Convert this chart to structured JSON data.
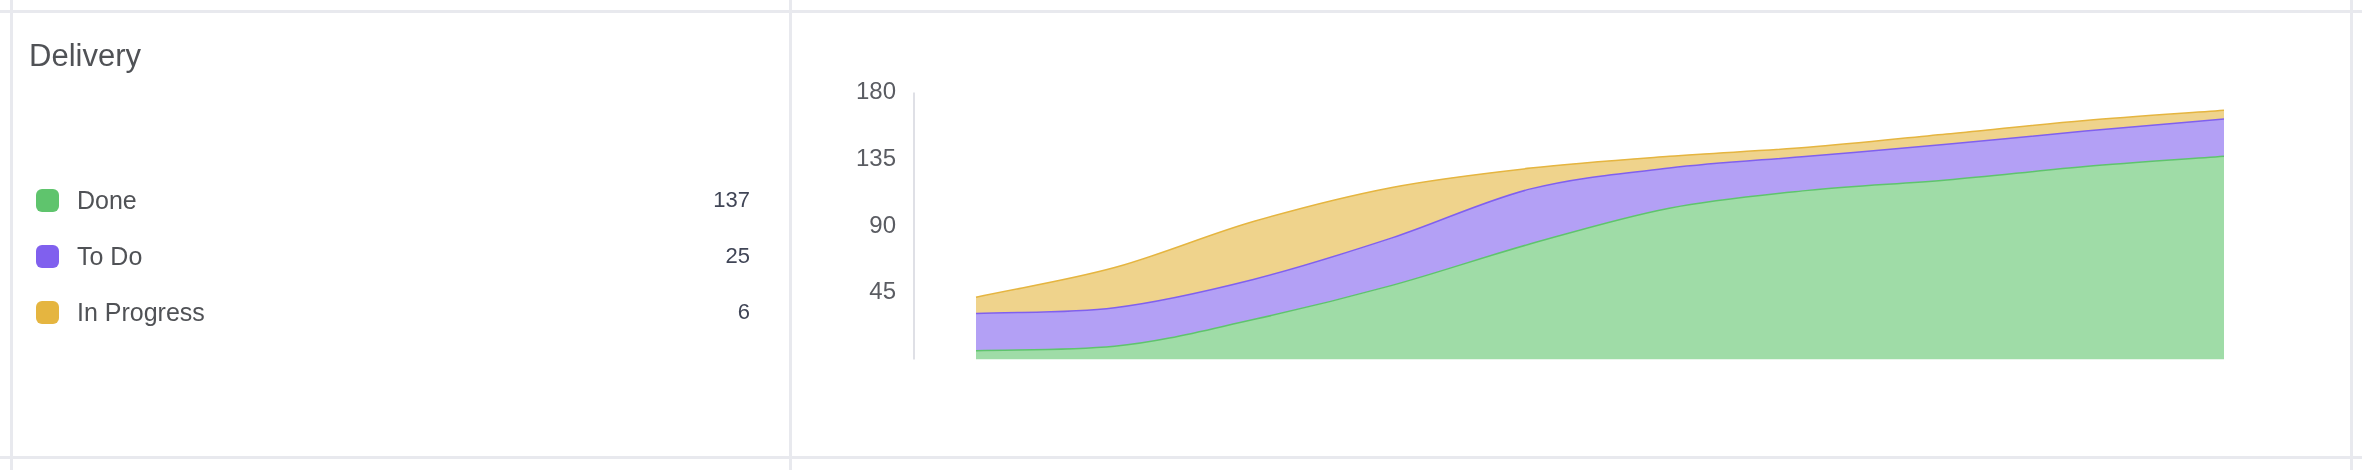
{
  "chart_data": {
    "type": "area",
    "title": "Delivery",
    "stacked": true,
    "legend": "left",
    "categories": [
      null,
      null,
      null,
      null,
      null,
      null,
      null,
      null,
      null,
      null
    ],
    "series": [
      {
        "name": "Done",
        "color": "#5fc46d",
        "values": [
          6,
          9,
          27,
          50,
          78,
          102,
          114,
          121,
          130,
          137
        ]
      },
      {
        "name": "To Do",
        "color": "#8060ee",
        "values": [
          25,
          26,
          27,
          32,
          37,
          27,
          23,
          24,
          24,
          25
        ]
      },
      {
        "name": "In Progress",
        "color": "#e5b540",
        "values": [
          11,
          27,
          39,
          34,
          14,
          8,
          6,
          7,
          7,
          6
        ]
      }
    ],
    "ylim": [
      0,
      180
    ],
    "yticks": [
      45,
      90,
      135,
      180
    ],
    "annotations": [
      "137",
      "25",
      "6"
    ],
    "grid": false,
    "tick_labels": "y"
  }
}
